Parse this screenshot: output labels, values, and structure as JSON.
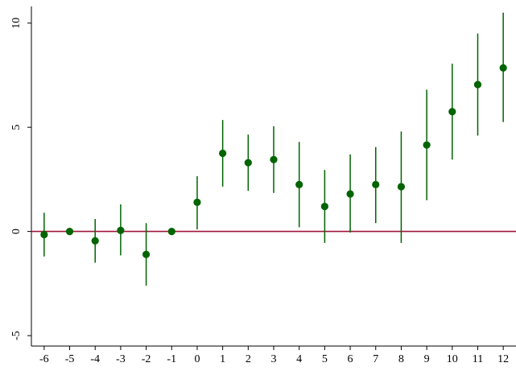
{
  "chart_data": {
    "type": "scatter",
    "title": "",
    "xlabel": "",
    "ylabel": "",
    "x_ticks": [
      -6,
      -5,
      -4,
      -3,
      -2,
      -1,
      0,
      1,
      2,
      3,
      4,
      5,
      6,
      7,
      8,
      9,
      10,
      11,
      12
    ],
    "y_ticks": [
      -5,
      0,
      5,
      10
    ],
    "xlim": [
      -6.5,
      12.5
    ],
    "ylim": [
      -5.5,
      10.8
    ],
    "grid": false,
    "reference_line": {
      "y": 0,
      "color": "#a0143c"
    },
    "marker_color": "#006400",
    "errorbar_color": "#006400",
    "points": [
      {
        "x": -6,
        "y": -0.15,
        "lo": -1.2,
        "hi": 0.9
      },
      {
        "x": -5,
        "y": 0.0,
        "lo": 0.0,
        "hi": 0.0
      },
      {
        "x": -4,
        "y": -0.45,
        "lo": -1.5,
        "hi": 0.6
      },
      {
        "x": -3,
        "y": 0.05,
        "lo": -1.15,
        "hi": 1.3
      },
      {
        "x": -2,
        "y": -1.1,
        "lo": -2.6,
        "hi": 0.4
      },
      {
        "x": -1,
        "y": 0.0,
        "lo": 0.0,
        "hi": 0.0
      },
      {
        "x": 0,
        "y": 1.4,
        "lo": 0.1,
        "hi": 2.65
      },
      {
        "x": 1,
        "y": 3.75,
        "lo": 2.15,
        "hi": 5.35
      },
      {
        "x": 2,
        "y": 3.3,
        "lo": 1.95,
        "hi": 4.65
      },
      {
        "x": 3,
        "y": 3.45,
        "lo": 1.85,
        "hi": 5.05
      },
      {
        "x": 4,
        "y": 2.25,
        "lo": 0.2,
        "hi": 4.3
      },
      {
        "x": 5,
        "y": 1.2,
        "lo": -0.55,
        "hi": 2.95
      },
      {
        "x": 6,
        "y": 1.8,
        "lo": -0.05,
        "hi": 3.7
      },
      {
        "x": 7,
        "y": 2.25,
        "lo": 0.4,
        "hi": 4.05
      },
      {
        "x": 8,
        "y": 2.15,
        "lo": -0.55,
        "hi": 4.8
      },
      {
        "x": 9,
        "y": 4.15,
        "lo": 1.5,
        "hi": 6.8
      },
      {
        "x": 10,
        "y": 5.75,
        "lo": 3.45,
        "hi": 8.05
      },
      {
        "x": 11,
        "y": 7.05,
        "lo": 4.6,
        "hi": 9.5
      },
      {
        "x": 12,
        "y": 7.85,
        "lo": 5.25,
        "hi": 10.5
      }
    ]
  }
}
